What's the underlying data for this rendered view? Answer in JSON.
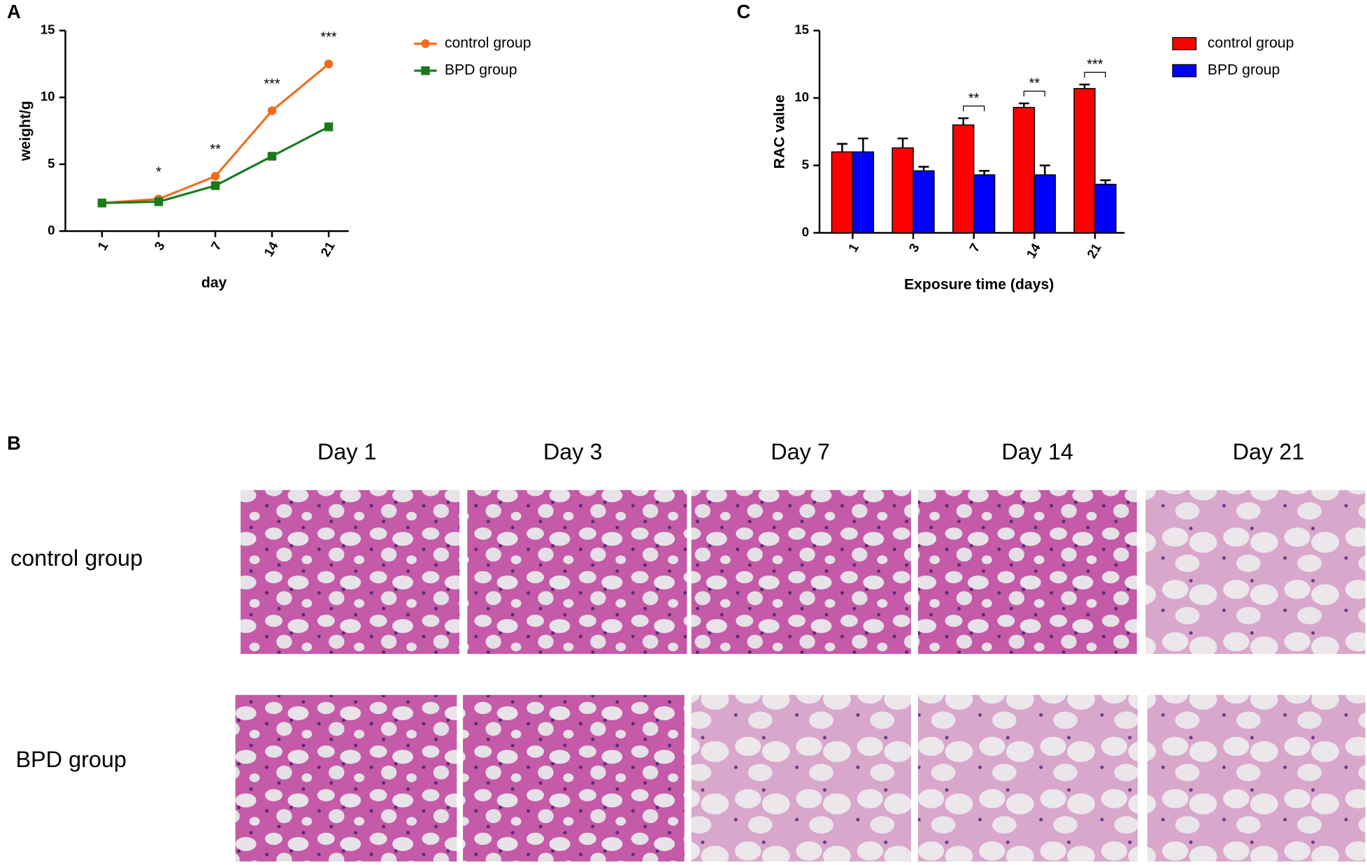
{
  "chart_data": [
    {
      "type": "line",
      "panel_label": "A",
      "categories": [
        "1",
        "3",
        "7",
        "14",
        "21"
      ],
      "series": [
        {
          "name": "control group",
          "color": "#f26b1d",
          "marker": "circle",
          "values": [
            2.1,
            2.4,
            4.1,
            9.0,
            12.5
          ]
        },
        {
          "name": "BPD group",
          "color": "#1a7a1a",
          "marker": "square",
          "values": [
            2.1,
            2.2,
            3.4,
            5.6,
            7.8
          ]
        }
      ],
      "significance": [
        null,
        "*",
        "**",
        "***",
        "***"
      ],
      "xlabel": "day",
      "ylabel": "weight/g",
      "ylim": [
        0,
        15
      ],
      "yticks": [
        0,
        5,
        10,
        15
      ]
    },
    {
      "type": "bar",
      "panel_label": "C",
      "categories": [
        "1",
        "3",
        "7",
        "14",
        "21"
      ],
      "series": [
        {
          "name": "control group",
          "color": "#ff0000",
          "values": [
            6.0,
            6.3,
            8.0,
            9.3,
            10.7
          ],
          "errors": [
            0.6,
            0.7,
            0.5,
            0.3,
            0.3
          ]
        },
        {
          "name": "BPD group",
          "color": "#0000ff",
          "values": [
            6.0,
            4.6,
            4.3,
            4.3,
            3.6
          ],
          "errors": [
            1.0,
            0.3,
            0.3,
            0.7,
            0.3
          ]
        }
      ],
      "significance": [
        null,
        null,
        "**",
        "**",
        "***"
      ],
      "xlabel": "Exposure time (days)",
      "ylabel": "RAC value",
      "ylim": [
        0,
        15
      ],
      "yticks": [
        0,
        5,
        10,
        15
      ]
    }
  ],
  "histology": {
    "panel_label": "B",
    "columns": [
      "Day 1",
      "Day 3",
      "Day 7",
      "Day 14",
      "Day 21"
    ],
    "rows": [
      "control group",
      "BPD group"
    ]
  }
}
